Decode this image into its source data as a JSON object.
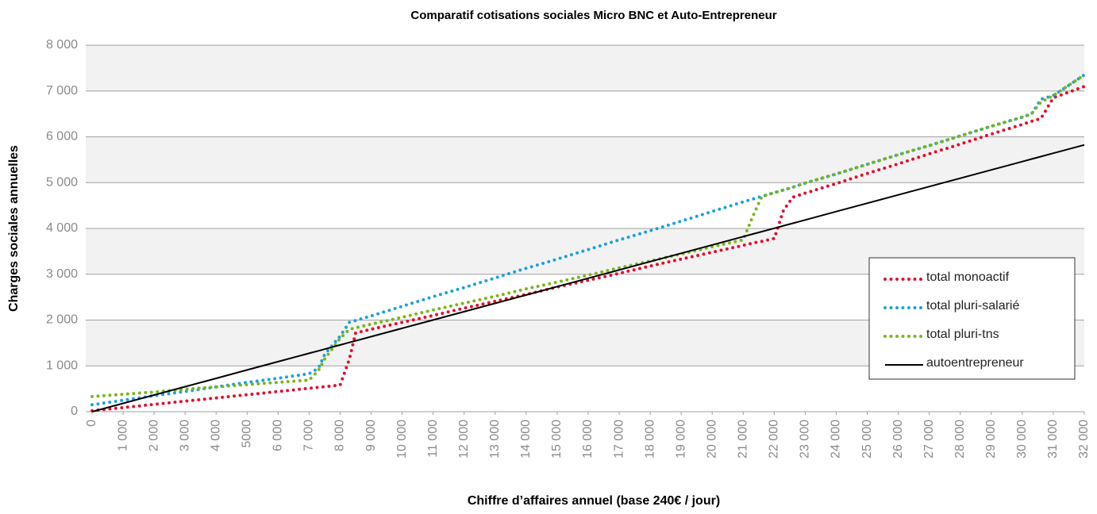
{
  "chart_data": {
    "type": "line",
    "title": "Comparatif cotisations sociales Micro BNC et Auto-Entrepreneur",
    "x_label": "Chiffre d’affaires annuel (base 240€ / jour)",
    "y_label": "Charges sociales annuelles",
    "x": [
      0,
      1000,
      2000,
      3000,
      4000,
      5000,
      6000,
      7000,
      7300,
      7500,
      8000,
      8300,
      8500,
      9000,
      10000,
      11000,
      12000,
      13000,
      14000,
      15000,
      16000,
      17000,
      18000,
      19000,
      20000,
      21000,
      21300,
      21600,
      22000,
      22300,
      22600,
      23000,
      24000,
      25000,
      26000,
      27000,
      28000,
      29000,
      30000,
      30300,
      30600,
      31000,
      32000
    ],
    "series": [
      {
        "name": "total monoactif",
        "color": "#e0102f",
        "style": "dotted",
        "values": [
          20,
          90,
          160,
          230,
          300,
          370,
          440,
          510,
          530,
          545,
          580,
          1150,
          1720,
          1800,
          1950,
          2100,
          2260,
          2410,
          2560,
          2720,
          2870,
          3020,
          3180,
          3330,
          3480,
          3630,
          3680,
          3720,
          3780,
          4400,
          4680,
          4770,
          4980,
          5200,
          5410,
          5630,
          5840,
          6060,
          6270,
          6340,
          6400,
          6850,
          7100
        ]
      },
      {
        "name": "total pluri-salarié",
        "color": "#1ea0dc",
        "style": "dotted",
        "values": [
          150,
          250,
          350,
          440,
          540,
          640,
          730,
          830,
          950,
          1250,
          1650,
          1950,
          1990,
          2090,
          2300,
          2510,
          2710,
          2920,
          3130,
          3330,
          3540,
          3750,
          3950,
          4160,
          4370,
          4580,
          4640,
          4700,
          4780,
          4840,
          4900,
          4990,
          5190,
          5400,
          5610,
          5810,
          6020,
          6230,
          6430,
          6500,
          6820,
          6900,
          7350
        ]
      },
      {
        "name": "total pluri-tns",
        "color": "#7ab51d",
        "style": "dotted",
        "values": [
          330,
          380,
          430,
          490,
          540,
          590,
          640,
          690,
          900,
          1150,
          1600,
          1800,
          1830,
          1910,
          2060,
          2220,
          2370,
          2520,
          2680,
          2830,
          2980,
          3140,
          3290,
          3440,
          3600,
          3750,
          4250,
          4700,
          4780,
          4840,
          4900,
          4990,
          5190,
          5400,
          5610,
          5810,
          6020,
          6230,
          6430,
          6500,
          6760,
          6900,
          7350
        ]
      },
      {
        "name": "autoentrepreneur",
        "color": "#000000",
        "style": "solid",
        "values": [
          0,
          182,
          364,
          546,
          728,
          910,
          1092,
          1274,
          1329,
          1365,
          1456,
          1511,
          1547,
          1638,
          1820,
          2002,
          2184,
          2366,
          2548,
          2730,
          2912,
          3094,
          3276,
          3458,
          3640,
          3822,
          3877,
          3931,
          4004,
          4059,
          4113,
          4186,
          4368,
          4550,
          4732,
          4914,
          5096,
          5278,
          5460,
          5515,
          5569,
          5642,
          5824
        ]
      }
    ],
    "xlim": [
      0,
      32000
    ],
    "xticks": [
      0,
      {
        "value": 1000,
        "label": "1 000"
      },
      {
        "value": 2000,
        "label": "2 000"
      },
      {
        "value": 3000,
        "label": "3 000"
      },
      {
        "value": 4000,
        "label": "4 000"
      },
      5000,
      {
        "value": 6000,
        "label": "6 000"
      },
      {
        "value": 7000,
        "label": "7 000"
      },
      {
        "value": 8000,
        "label": "8 000"
      },
      {
        "value": 9000,
        "label": "9 000"
      },
      {
        "value": 10000,
        "label": "10 000"
      },
      {
        "value": 11000,
        "label": "11 000"
      },
      {
        "value": 12000,
        "label": "12 000"
      },
      {
        "value": 13000,
        "label": "13 000"
      },
      {
        "value": 14000,
        "label": "14 000"
      },
      {
        "value": 15000,
        "label": "15 000"
      },
      {
        "value": 16000,
        "label": "16 000"
      },
      {
        "value": 17000,
        "label": "17 000"
      },
      {
        "value": 18000,
        "label": "18 000"
      },
      {
        "value": 19000,
        "label": "19 000"
      },
      {
        "value": 20000,
        "label": "20 000"
      },
      {
        "value": 21000,
        "label": "21 000"
      },
      {
        "value": 22000,
        "label": "22 000"
      },
      {
        "value": 23000,
        "label": "23 000"
      },
      {
        "value": 24000,
        "label": "24 000"
      },
      {
        "value": 25000,
        "label": "25 000"
      },
      {
        "value": 26000,
        "label": "26 000"
      },
      {
        "value": 27000,
        "label": "27 000"
      },
      {
        "value": 28000,
        "label": "28 000"
      },
      {
        "value": 29000,
        "label": "29 000"
      },
      {
        "value": 30000,
        "label": "30 000"
      },
      {
        "value": 31000,
        "label": "31 000"
      },
      {
        "value": 32000,
        "label": "32 000"
      }
    ],
    "ylim": [
      0,
      8000
    ],
    "yticks": [
      0,
      {
        "value": 1000,
        "label": "1 000"
      },
      {
        "value": 2000,
        "label": "2 000"
      },
      {
        "value": 3000,
        "label": "3 000"
      },
      {
        "value": 4000,
        "label": "4 000"
      },
      {
        "value": 5000,
        "label": "5 000"
      },
      {
        "value": 6000,
        "label": "6 000"
      },
      {
        "value": 7000,
        "label": "7 000"
      },
      {
        "value": 8000,
        "label": "8 000"
      }
    ],
    "grid": true,
    "legend": "lower right"
  }
}
